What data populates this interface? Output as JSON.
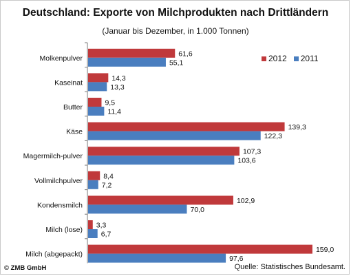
{
  "chart_data": {
    "type": "bar",
    "orientation": "horizontal",
    "title": "Deutschland: Exporte von Milchprodukten nach Drittländern",
    "subtitle": "(Januar bis Dezember, in 1.000 Tonnen)",
    "categories": [
      "Molkenpulver",
      "Kaseinat",
      "Butter",
      "Käse",
      "Magermilch-pulver",
      "Vollmilchpulver",
      "Kondensmilch",
      "Milch (lose)",
      "Milch (abgepackt)"
    ],
    "series": [
      {
        "name": "2012",
        "color": "#c0393b",
        "values": [
          61.6,
          14.3,
          9.5,
          139.3,
          107.3,
          8.4,
          102.9,
          3.3,
          159.0
        ],
        "labels": [
          "61,6",
          "14,3",
          "9,5",
          "139,3",
          "107,3",
          "8,4",
          "102,9",
          "3,3",
          "159,0"
        ]
      },
      {
        "name": "2011",
        "color": "#4a7ebf",
        "values": [
          55.1,
          13.3,
          11.4,
          122.3,
          103.6,
          7.2,
          70.0,
          6.7,
          97.6
        ],
        "labels": [
          "55,1",
          "13,3",
          "11,4",
          "122,3",
          "103,6",
          "7,2",
          "70,0",
          "6,7",
          "97,6"
        ]
      }
    ],
    "xlim": [
      0,
      170
    ],
    "grid": false,
    "legend_position": "top-right"
  },
  "footer": {
    "copyright": "© ZMB GmbH",
    "source": "Quelle: Statistisches Bundesamt."
  }
}
